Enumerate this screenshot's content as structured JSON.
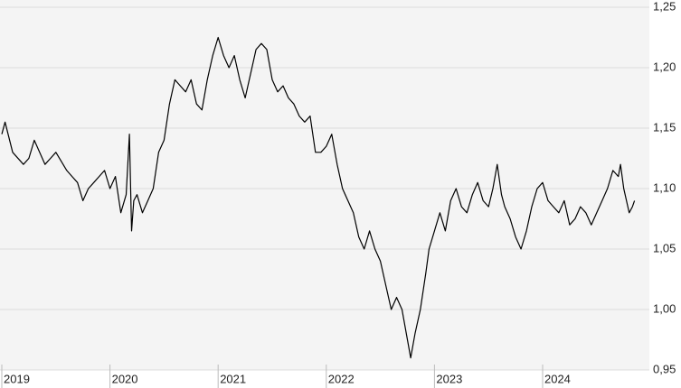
{
  "chart_data": {
    "type": "line",
    "x": [
      2019.0,
      2019.03,
      2019.1,
      2019.2,
      2019.25,
      2019.3,
      2019.4,
      2019.45,
      2019.5,
      2019.6,
      2019.65,
      2019.7,
      2019.75,
      2019.8,
      2019.85,
      2019.9,
      2019.95,
      2020.0,
      2020.05,
      2020.1,
      2020.15,
      2020.18,
      2020.2,
      2020.22,
      2020.25,
      2020.3,
      2020.35,
      2020.4,
      2020.45,
      2020.5,
      2020.55,
      2020.6,
      2020.65,
      2020.7,
      2020.75,
      2020.8,
      2020.85,
      2020.9,
      2020.95,
      2021.0,
      2021.05,
      2021.1,
      2021.15,
      2021.2,
      2021.25,
      2021.3,
      2021.35,
      2021.4,
      2021.45,
      2021.5,
      2021.55,
      2021.6,
      2021.65,
      2021.7,
      2021.75,
      2021.8,
      2021.85,
      2021.9,
      2021.95,
      2022.0,
      2022.05,
      2022.1,
      2022.15,
      2022.2,
      2022.25,
      2022.3,
      2022.35,
      2022.4,
      2022.45,
      2022.5,
      2022.55,
      2022.6,
      2022.65,
      2022.7,
      2022.75,
      2022.78,
      2022.82,
      2022.87,
      2022.92,
      2022.95,
      2023.0,
      2023.05,
      2023.1,
      2023.15,
      2023.2,
      2023.25,
      2023.3,
      2023.35,
      2023.4,
      2023.45,
      2023.5,
      2023.54,
      2023.58,
      2023.62,
      2023.65,
      2023.7,
      2023.75,
      2023.8,
      2023.85,
      2023.9,
      2023.95,
      2024.0,
      2024.05,
      2024.1,
      2024.15,
      2024.2,
      2024.25,
      2024.3,
      2024.35,
      2024.4,
      2024.45,
      2024.5,
      2024.55,
      2024.6,
      2024.65,
      2024.7,
      2024.72,
      2024.75,
      2024.8,
      2024.83,
      2024.85
    ],
    "series": [
      {
        "color": "#000000",
        "values": [
          1.145,
          1.155,
          1.13,
          1.12,
          1.125,
          1.14,
          1.12,
          1.125,
          1.13,
          1.115,
          1.11,
          1.105,
          1.09,
          1.1,
          1.105,
          1.11,
          1.115,
          1.1,
          1.11,
          1.08,
          1.095,
          1.145,
          1.065,
          1.09,
          1.095,
          1.08,
          1.09,
          1.1,
          1.13,
          1.14,
          1.17,
          1.19,
          1.185,
          1.18,
          1.19,
          1.17,
          1.165,
          1.19,
          1.21,
          1.225,
          1.21,
          1.2,
          1.21,
          1.19,
          1.175,
          1.195,
          1.215,
          1.22,
          1.215,
          1.19,
          1.18,
          1.185,
          1.175,
          1.17,
          1.16,
          1.155,
          1.16,
          1.13,
          1.13,
          1.135,
          1.145,
          1.12,
          1.1,
          1.09,
          1.08,
          1.06,
          1.05,
          1.065,
          1.05,
          1.04,
          1.02,
          1.0,
          1.01,
          1.0,
          0.975,
          0.96,
          0.98,
          1.0,
          1.03,
          1.05,
          1.065,
          1.08,
          1.065,
          1.09,
          1.1,
          1.085,
          1.08,
          1.095,
          1.105,
          1.09,
          1.085,
          1.1,
          1.12,
          1.095,
          1.085,
          1.075,
          1.06,
          1.05,
          1.065,
          1.085,
          1.1,
          1.105,
          1.09,
          1.085,
          1.08,
          1.09,
          1.07,
          1.075,
          1.085,
          1.08,
          1.07,
          1.08,
          1.09,
          1.1,
          1.115,
          1.11,
          1.12,
          1.1,
          1.08,
          1.085,
          1.09
        ]
      }
    ],
    "xlim": [
      2019,
      2024.97
    ],
    "xticks": [
      2019,
      2020,
      2021,
      2022,
      2023,
      2024
    ],
    "ylim": [
      0.95,
      1.25
    ],
    "yticks": [
      {
        "value": 0.95,
        "label": "0,95"
      },
      {
        "value": 1.0,
        "label": "1,00"
      },
      {
        "value": 1.05,
        "label": "1,05"
      },
      {
        "value": 1.1,
        "label": "1,10"
      },
      {
        "value": 1.15,
        "label": "1,15"
      },
      {
        "value": 1.2,
        "label": "1,20"
      },
      {
        "value": 1.25,
        "label": "1,25"
      }
    ],
    "grid": true
  }
}
